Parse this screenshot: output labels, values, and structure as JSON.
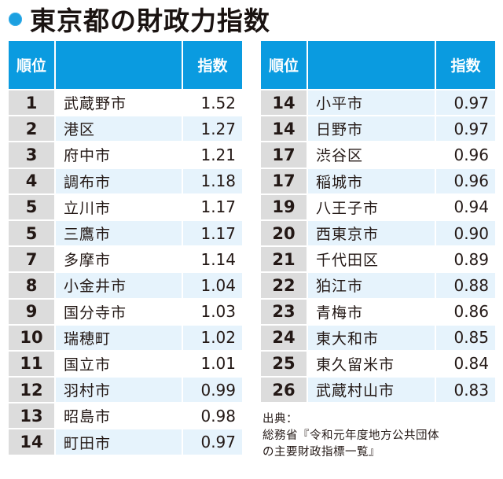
{
  "title": {
    "text": "東京都の財政力指数",
    "bullet_color": "#1ca0e0"
  },
  "colors": {
    "header_bg": "#0a9be0",
    "header_text": "#ffffff",
    "rank_bg": "#dcdcdc",
    "alt_row_bg": "#e6f3fc"
  },
  "table_headers": {
    "rank": "順位",
    "name": "",
    "index": "指数"
  },
  "left_table": {
    "rows": [
      {
        "rank": "1",
        "name": "武蔵野市",
        "index": "1.52",
        "alt": false
      },
      {
        "rank": "2",
        "name": "港区",
        "index": "1.27",
        "alt": true
      },
      {
        "rank": "3",
        "name": "府中市",
        "index": "1.21",
        "alt": false
      },
      {
        "rank": "4",
        "name": "調布市",
        "index": "1.18",
        "alt": true
      },
      {
        "rank": "5",
        "name": "立川市",
        "index": "1.17",
        "alt": false
      },
      {
        "rank": "5",
        "name": "三鷹市",
        "index": "1.17",
        "alt": true
      },
      {
        "rank": "7",
        "name": "多摩市",
        "index": "1.14",
        "alt": false
      },
      {
        "rank": "8",
        "name": "小金井市",
        "index": "1.04",
        "alt": true
      },
      {
        "rank": "9",
        "name": "国分寺市",
        "index": "1.03",
        "alt": false
      },
      {
        "rank": "10",
        "name": "瑞穂町",
        "index": "1.02",
        "alt": true
      },
      {
        "rank": "11",
        "name": "国立市",
        "index": "1.01",
        "alt": false
      },
      {
        "rank": "12",
        "name": "羽村市",
        "index": "0.99",
        "alt": true
      },
      {
        "rank": "13",
        "name": "昭島市",
        "index": "0.98",
        "alt": false
      },
      {
        "rank": "14",
        "name": "町田市",
        "index": "0.97",
        "alt": true
      }
    ]
  },
  "right_table": {
    "rows": [
      {
        "rank": "14",
        "name": "小平市",
        "index": "0.97",
        "alt": true
      },
      {
        "rank": "14",
        "name": "日野市",
        "index": "0.97",
        "alt": true
      },
      {
        "rank": "17",
        "name": "渋谷区",
        "index": "0.96",
        "alt": false
      },
      {
        "rank": "17",
        "name": "稲城市",
        "index": "0.96",
        "alt": true
      },
      {
        "rank": "19",
        "name": "八王子市",
        "index": "0.94",
        "alt": false
      },
      {
        "rank": "20",
        "name": "西東京市",
        "index": "0.90",
        "alt": true
      },
      {
        "rank": "21",
        "name": "千代田区",
        "index": "0.89",
        "alt": false
      },
      {
        "rank": "22",
        "name": "狛江市",
        "index": "0.88",
        "alt": true
      },
      {
        "rank": "23",
        "name": "青梅市",
        "index": "0.86",
        "alt": false
      },
      {
        "rank": "24",
        "name": "東大和市",
        "index": "0.85",
        "alt": true
      },
      {
        "rank": "25",
        "name": "東久留米市",
        "index": "0.84",
        "alt": false
      },
      {
        "rank": "26",
        "name": "武蔵村山市",
        "index": "0.83",
        "alt": true
      }
    ]
  },
  "source": {
    "line1": "出典：",
    "line2": "総務省『令和元年度地方公共団体",
    "line3": "の主要財政指標一覧』"
  }
}
